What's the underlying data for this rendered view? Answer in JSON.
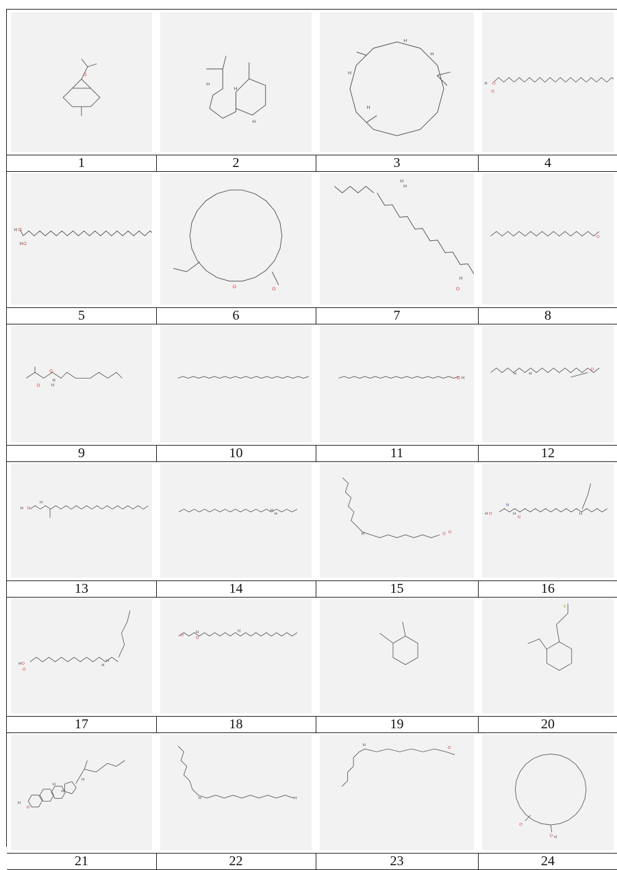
{
  "labels": [
    "1",
    "2",
    "3",
    "4",
    "5",
    "6",
    "7",
    "8",
    "9",
    "10",
    "11",
    "12",
    "13",
    "14",
    "15",
    "16",
    "17",
    "18",
    "19",
    "20",
    "21",
    "22",
    "23",
    "24"
  ],
  "structures": [
    {
      "id": "1",
      "atoms": [
        "O"
      ]
    },
    {
      "id": "2",
      "atoms": [
        "H",
        "H",
        "H"
      ]
    },
    {
      "id": "3",
      "atoms": [
        "H",
        "H",
        "H",
        "H"
      ]
    },
    {
      "id": "4",
      "atoms": [
        "H",
        "O",
        "O"
      ]
    },
    {
      "id": "5",
      "atoms": [
        "H",
        "O",
        "H",
        "O"
      ]
    },
    {
      "id": "6",
      "atoms": [
        "O",
        "O"
      ]
    },
    {
      "id": "7",
      "atoms": [
        "H",
        "H",
        "O",
        "H"
      ]
    },
    {
      "id": "8",
      "atoms": [
        "O"
      ]
    },
    {
      "id": "9",
      "atoms": [
        "O",
        "O",
        "H",
        "H"
      ]
    },
    {
      "id": "10",
      "atoms": []
    },
    {
      "id": "11",
      "atoms": [
        "O",
        "H"
      ]
    },
    {
      "id": "12",
      "atoms": [
        "H",
        "H",
        "O"
      ]
    },
    {
      "id": "13",
      "atoms": [
        "H",
        "O",
        "H"
      ]
    },
    {
      "id": "14",
      "atoms": [
        "H",
        "H"
      ]
    },
    {
      "id": "15",
      "atoms": [
        "H",
        "O",
        "O"
      ]
    },
    {
      "id": "16",
      "atoms": [
        "H",
        "O",
        "N",
        "H",
        "O",
        "H"
      ]
    },
    {
      "id": "17",
      "atoms": [
        "H",
        "O",
        "O",
        "H",
        "H"
      ]
    },
    {
      "id": "18",
      "atoms": [
        "O",
        "O",
        "H",
        "H"
      ]
    },
    {
      "id": "19",
      "atoms": []
    },
    {
      "id": "20",
      "atoms": [
        "S"
      ]
    },
    {
      "id": "21",
      "atoms": [
        "H",
        "O",
        "H",
        "H",
        "H"
      ]
    },
    {
      "id": "22",
      "atoms": [
        "H",
        "H"
      ]
    },
    {
      "id": "23",
      "atoms": [
        "H",
        "O"
      ]
    },
    {
      "id": "24",
      "atoms": [
        "O",
        "O",
        "H"
      ]
    }
  ],
  "colors": {
    "bond": "#555555",
    "oxygen": "#d23030",
    "nitrogen": "#3050d0",
    "sulfur": "#b8a000",
    "cell_bg": "#f2f2f2",
    "border": "#222222"
  }
}
